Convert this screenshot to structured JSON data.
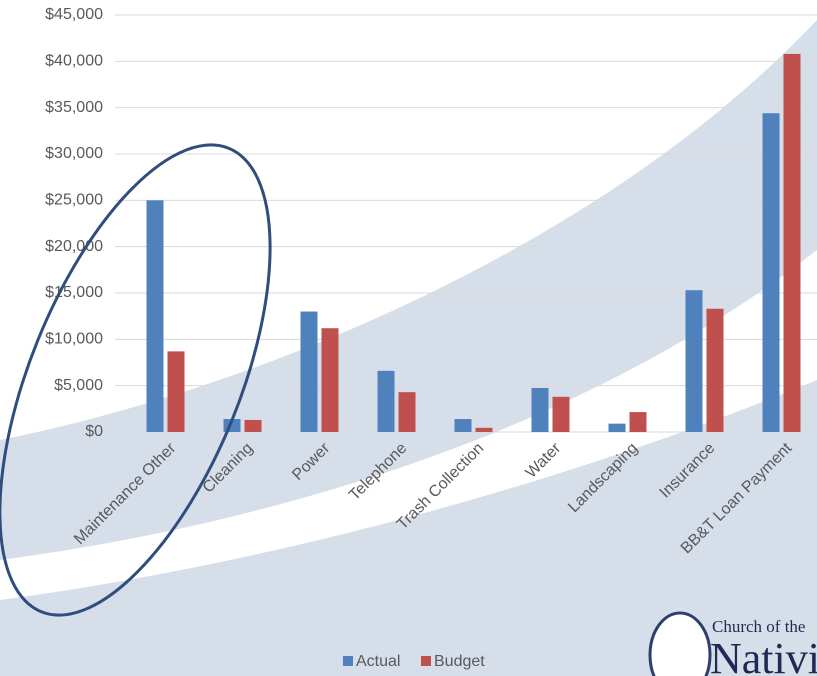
{
  "chart_data": {
    "type": "bar",
    "categories": [
      "Maintenance Other",
      "Cleaning",
      "Power",
      "Telephone",
      "Trash Collection",
      "Water",
      "Landscaping",
      "Insurance",
      "BB&T Loan Payment"
    ],
    "series": [
      {
        "name": "Actual",
        "color": "#4f81bd",
        "values": [
          25000,
          1400,
          13000,
          6600,
          1400,
          4750,
          900,
          15300,
          34400
        ]
      },
      {
        "name": "Budget",
        "color": "#c0504d",
        "values": [
          8700,
          1300,
          11200,
          4300,
          450,
          3800,
          2150,
          13300,
          40800
        ]
      }
    ],
    "ylim": [
      0,
      45000
    ],
    "yticks": [
      {
        "value": 0,
        "label": "$0"
      },
      {
        "value": 5000,
        "label": "$5,000"
      },
      {
        "value": 10000,
        "label": "$10,000"
      },
      {
        "value": 15000,
        "label": "$15,000"
      },
      {
        "value": 20000,
        "label": "$20,000"
      },
      {
        "value": 25000,
        "label": "$25,000"
      },
      {
        "value": 30000,
        "label": "$30,000"
      },
      {
        "value": 35000,
        "label": "$35,000"
      },
      {
        "value": 40000,
        "label": "$40,000"
      },
      {
        "value": 45000,
        "label": "$45,000"
      }
    ],
    "grid": true,
    "legend": "bottom",
    "logo": {
      "line1": "Church of the",
      "line2": "Nativity"
    }
  }
}
